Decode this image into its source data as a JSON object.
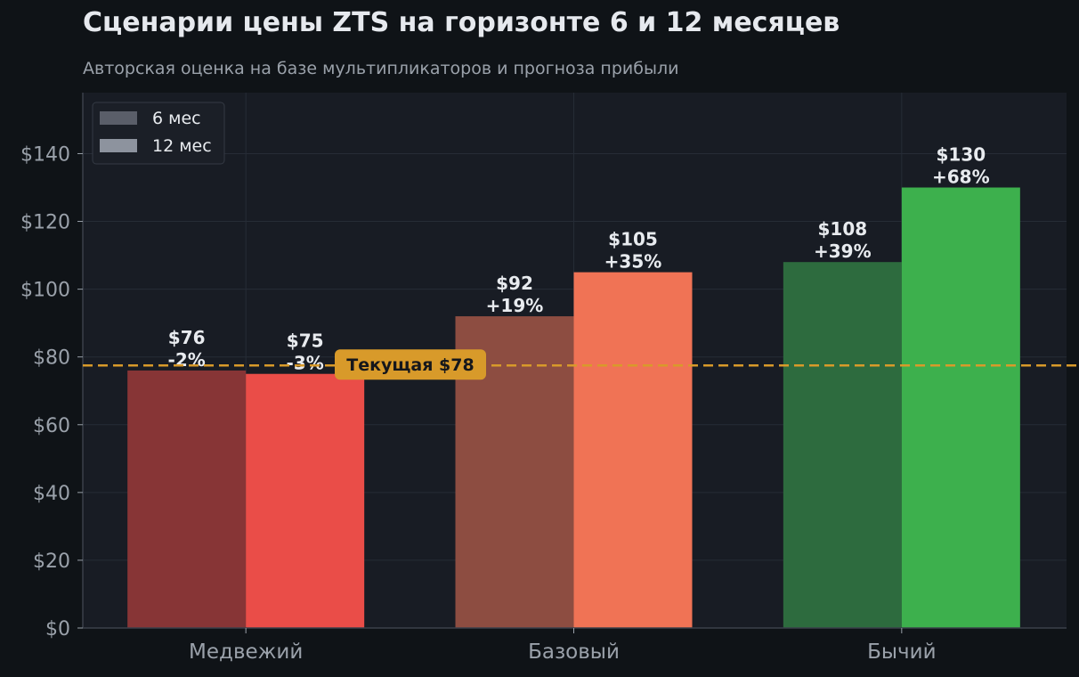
{
  "chart_data": {
    "type": "bar",
    "title": "Сценарии цены ZTS на горизонте 6 и 12 месяцев",
    "subtitle": "Авторская оценка на базе мультипликаторов и прогноза прибыли",
    "categories": [
      "Медвежий",
      "Базовый",
      "Бычий"
    ],
    "series": [
      {
        "name": "6 мес",
        "values": [
          76,
          92,
          108
        ],
        "labels": [
          "$76\n-2%",
          "$92\n+19%",
          "$108\n+39%"
        ],
        "colors": [
          "#873536",
          "#8d4d41",
          "#2d6b3e"
        ]
      },
      {
        "name": "12 мес",
        "values": [
          75,
          105,
          130
        ],
        "labels": [
          "$75\n-3%",
          "$105\n+35%",
          "$130\n+68%"
        ],
        "colors": [
          "#ea4d48",
          "#f07355",
          "#3db04d"
        ]
      }
    ],
    "ylim": [
      0,
      158
    ],
    "yticks": [
      0,
      20,
      40,
      60,
      80,
      100,
      120,
      140
    ],
    "ytick_labels": [
      "$0",
      "$20",
      "$40",
      "$60",
      "$80",
      "$100",
      "$120",
      "$140"
    ],
    "reference_line": {
      "value": 77.5,
      "label": "Текущая $78",
      "color": "#d89a2a"
    },
    "grid": true,
    "legend": {
      "placement": "top-left",
      "entries": [
        {
          "name": "6 мес",
          "color": "#5a5e69"
        },
        {
          "name": "12 мес",
          "color": "#8d939e"
        }
      ]
    },
    "colors": {
      "page_bg": "#0f1317",
      "plot_bg": "#181c24",
      "grid": "#262c36",
      "axis": "#3a404a",
      "tick_text": "#9aa1aa",
      "value_text": "#e8ebef"
    }
  }
}
